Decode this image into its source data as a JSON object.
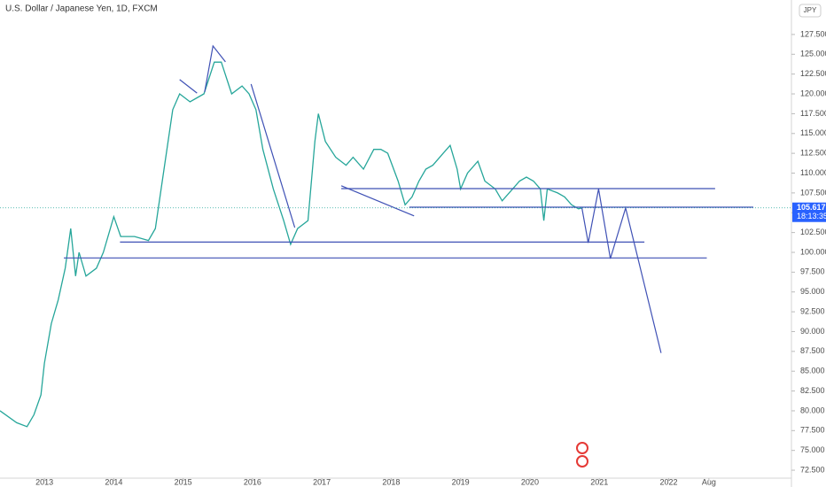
{
  "chart_data": {
    "type": "line",
    "title": "U.S. Dollar / Japanese Yen, 1D, FXCM",
    "currency": "JPY",
    "color": "#26a69a",
    "drawing_color": "#3f51b5",
    "grid": false,
    "x": [
      2012.36,
      2012.6,
      2012.75,
      2012.85,
      2012.95,
      2013.0,
      2013.1,
      2013.2,
      2013.3,
      2013.38,
      2013.45,
      2013.5,
      2013.6,
      2013.75,
      2013.85,
      2014.0,
      2014.1,
      2014.3,
      2014.5,
      2014.6,
      2014.7,
      2014.85,
      2014.95,
      2015.1,
      2015.3,
      2015.45,
      2015.55,
      2015.7,
      2015.85,
      2015.95,
      2016.05,
      2016.15,
      2016.3,
      2016.45,
      2016.55,
      2016.65,
      2016.8,
      2016.9,
      2016.95,
      2017.05,
      2017.2,
      2017.35,
      2017.45,
      2017.6,
      2017.75,
      2017.85,
      2017.95,
      2018.1,
      2018.2,
      2018.3,
      2018.4,
      2018.5,
      2018.6,
      2018.75,
      2018.85,
      2018.95,
      2019.0,
      2019.1,
      2019.25,
      2019.35,
      2019.5,
      2019.6,
      2019.75,
      2019.85,
      2019.95,
      2020.05,
      2020.15,
      2020.2,
      2020.25,
      2020.4,
      2020.5,
      2020.6,
      2020.7,
      2020.75
    ],
    "values": [
      80,
      78.5,
      78,
      79.5,
      82,
      86,
      91,
      94,
      98,
      103,
      97,
      100,
      97,
      98,
      100,
      104.5,
      102,
      102,
      101.5,
      103,
      109,
      118,
      120,
      119,
      120,
      124,
      124,
      120,
      121,
      120,
      118,
      113,
      108,
      104,
      101,
      103,
      104,
      114,
      117.5,
      114,
      112,
      111,
      112,
      110.5,
      113,
      113,
      112.5,
      109,
      106,
      107,
      109,
      110.5,
      111,
      112.5,
      113.5,
      110.5,
      108,
      110,
      111.5,
      109,
      108,
      106.5,
      108,
      109,
      109.5,
      109,
      108,
      104,
      108,
      107.5,
      107,
      106,
      105.5,
      105.6
    ],
    "last_price": 105.617,
    "countdown": "18:13:35",
    "drawings": [
      {
        "x": [
          2020.75,
          2020.84,
          2020.99,
          2021.16,
          2021.38,
          2021.89
        ],
        "y": [
          105.6,
          101.2,
          108,
          99.2,
          105.6,
          87.3
        ]
      },
      {
        "x": [
          2017.28,
          2022.67
        ],
        "y": [
          108.05,
          108.05
        ]
      },
      {
        "x": [
          2018.26,
          2023.22
        ],
        "y": [
          105.7,
          105.7
        ]
      },
      {
        "x": [
          2014.09,
          2021.65
        ],
        "y": [
          101.3,
          101.3
        ]
      },
      {
        "x": [
          2013.28,
          2022.55
        ],
        "y": [
          99.3,
          99.3
        ]
      },
      {
        "x": [
          2017.28,
          2018.33
        ],
        "y": [
          108.4,
          104.6
        ]
      },
      {
        "x": [
          2014.95,
          2015.2
        ],
        "y": [
          121.8,
          120.1
        ]
      },
      {
        "x": [
          2015.31,
          2015.43,
          2015.61
        ],
        "y": [
          120.24,
          126.05,
          124.04
        ]
      },
      {
        "x": [
          2015.98,
          2016.61
        ],
        "y": [
          121.24,
          103.13
        ]
      }
    ],
    "xlim": [
      2012.36,
      2023.77
    ],
    "ylim": [
      71.5,
      131.85
    ],
    "xticks": [
      {
        "value": 2013,
        "label": "2013"
      },
      {
        "value": 2014,
        "label": "2014"
      },
      {
        "value": 2015,
        "label": "2015"
      },
      {
        "value": 2016,
        "label": "2016"
      },
      {
        "value": 2017,
        "label": "2017"
      },
      {
        "value": 2018,
        "label": "2018"
      },
      {
        "value": 2019,
        "label": "2019"
      },
      {
        "value": 2020,
        "label": "2020"
      },
      {
        "value": 2021,
        "label": "2021"
      },
      {
        "value": 2022,
        "label": "2022"
      },
      {
        "value": 2022.58,
        "label": "Aug"
      }
    ],
    "yticks": [
      {
        "value": 72.5,
        "label": "72.500"
      },
      {
        "value": 75,
        "label": "75.000"
      },
      {
        "value": 77.5,
        "label": "77.500"
      },
      {
        "value": 80,
        "label": "80.000"
      },
      {
        "value": 82.5,
        "label": "82.500"
      },
      {
        "value": 85,
        "label": "85.000"
      },
      {
        "value": 87.5,
        "label": "87.500"
      },
      {
        "value": 90,
        "label": "90.000"
      },
      {
        "value": 92.5,
        "label": "92.500"
      },
      {
        "value": 95,
        "label": "95.000"
      },
      {
        "value": 97.5,
        "label": "97.500"
      },
      {
        "value": 100,
        "label": "100.000"
      },
      {
        "value": 102.5,
        "label": "102.500"
      },
      {
        "value": 105,
        "label": "105.000"
      },
      {
        "value": 107.5,
        "label": "107.500"
      },
      {
        "value": 110,
        "label": "110.000"
      },
      {
        "value": 112.5,
        "label": "112.500"
      },
      {
        "value": 115,
        "label": "115.000"
      },
      {
        "value": 117.5,
        "label": "117.500"
      },
      {
        "value": 120,
        "label": "120.000"
      },
      {
        "value": 122.5,
        "label": "122.500"
      },
      {
        "value": 125,
        "label": "125.000"
      },
      {
        "value": 127.5,
        "label": "127.500"
      }
    ]
  }
}
